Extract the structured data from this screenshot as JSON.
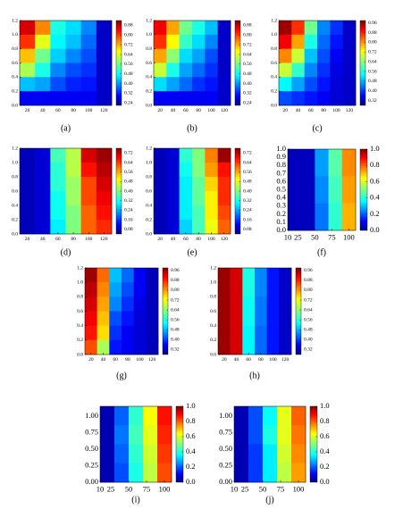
{
  "chart_data": [
    {
      "type": "heatmap",
      "caption": "(a)",
      "xlim": [
        10,
        130
      ],
      "xticks": [
        20,
        40,
        60,
        80,
        100,
        120
      ],
      "ylim": [
        0,
        1.2
      ],
      "yticks": [
        {
          "value": 0,
          "label": "0.0"
        },
        0.2,
        0.4,
        0.6,
        0.8,
        {
          "value": 1,
          "label": "1.0"
        },
        1.2
      ],
      "zlim": [
        0.22,
        0.92
      ],
      "zticks": [
        0.24,
        0.32,
        {
          "value": 0.4,
          "label": "0.40"
        },
        0.48,
        0.56,
        0.64,
        0.72,
        {
          "value": 0.8,
          "label": "0.80"
        },
        0.88
      ],
      "values": [
        [
          0.86,
          0.74,
          0.5,
          0.46,
          0.4,
          0.27
        ],
        [
          0.8,
          0.64,
          0.48,
          0.44,
          0.38,
          0.27
        ],
        [
          0.7,
          0.56,
          0.45,
          0.4,
          0.36,
          0.27
        ],
        [
          0.6,
          0.5,
          0.4,
          0.36,
          0.34,
          0.27
        ],
        [
          0.44,
          0.42,
          0.36,
          0.33,
          0.32,
          0.27
        ],
        [
          0.3,
          0.3,
          0.3,
          0.3,
          0.3,
          0.27
        ]
      ]
    },
    {
      "type": "heatmap",
      "caption": "(b)",
      "xlim": [
        10,
        130
      ],
      "xticks": [
        20,
        40,
        60,
        80,
        100,
        120
      ],
      "ylim": [
        0,
        1.2
      ],
      "yticks": [
        {
          "value": 0,
          "label": "0.0"
        },
        0.2,
        0.4,
        0.6,
        0.8,
        {
          "value": 1,
          "label": "1.0"
        },
        1.2
      ],
      "zlim": [
        0.22,
        0.92
      ],
      "zticks": [
        0.24,
        0.32,
        {
          "value": 0.4,
          "label": "0.40"
        },
        0.48,
        0.56,
        0.64,
        0.72,
        {
          "value": 0.8,
          "label": "0.80"
        },
        0.88
      ],
      "values": [
        [
          0.84,
          0.72,
          0.56,
          0.5,
          0.44,
          0.27
        ],
        [
          0.8,
          0.66,
          0.52,
          0.46,
          0.4,
          0.27
        ],
        [
          0.72,
          0.58,
          0.46,
          0.42,
          0.36,
          0.27
        ],
        [
          0.62,
          0.5,
          0.42,
          0.38,
          0.34,
          0.27
        ],
        [
          0.46,
          0.42,
          0.38,
          0.34,
          0.32,
          0.27
        ],
        [
          0.3,
          0.3,
          0.3,
          0.3,
          0.3,
          0.27
        ]
      ]
    },
    {
      "type": "heatmap",
      "caption": "(c)",
      "xlim": [
        10,
        130
      ],
      "xticks": [
        20,
        40,
        60,
        80,
        100,
        120
      ],
      "ylim": [
        0,
        1.2
      ],
      "yticks": [
        {
          "value": 0,
          "label": "0.0"
        },
        0.2,
        0.4,
        0.6,
        0.8,
        {
          "value": 1,
          "label": "1.0"
        },
        1.2
      ],
      "zlim": [
        0.28,
        0.98
      ],
      "zticks": [
        0.32,
        {
          "value": 0.4,
          "label": "0.40"
        },
        0.48,
        0.56,
        0.64,
        0.72,
        {
          "value": 0.8,
          "label": "0.80"
        },
        0.88,
        0.96
      ],
      "values": [
        [
          0.96,
          0.86,
          0.62,
          0.46,
          0.4,
          0.33
        ],
        [
          0.9,
          0.78,
          0.56,
          0.44,
          0.38,
          0.33
        ],
        [
          0.8,
          0.68,
          0.5,
          0.42,
          0.36,
          0.33
        ],
        [
          0.68,
          0.58,
          0.46,
          0.4,
          0.35,
          0.33
        ],
        [
          0.54,
          0.48,
          0.42,
          0.38,
          0.34,
          0.33
        ],
        [
          0.42,
          0.4,
          0.38,
          0.36,
          0.34,
          0.33
        ]
      ]
    },
    {
      "type": "heatmap",
      "caption": "(d)",
      "xlim": [
        10,
        130
      ],
      "xticks": [
        20,
        40,
        60,
        80,
        100,
        120
      ],
      "ylim": [
        0,
        1.2
      ],
      "yticks": [
        {
          "value": 0,
          "label": "0.0"
        },
        0.2,
        0.4,
        0.6,
        0.8,
        {
          "value": 1,
          "label": "1.0"
        },
        1.2
      ],
      "zlim": [
        0.04,
        0.76
      ],
      "zticks": [
        0.08,
        0.16,
        0.24,
        0.32,
        {
          "value": 0.4,
          "label": "0.40"
        },
        0.48,
        0.56,
        0.64,
        0.72
      ],
      "values": [
        [
          0.08,
          0.1,
          0.36,
          0.44,
          0.7,
          0.74
        ],
        [
          0.08,
          0.1,
          0.34,
          0.44,
          0.66,
          0.72
        ],
        [
          0.08,
          0.1,
          0.34,
          0.42,
          0.62,
          0.7
        ],
        [
          0.08,
          0.1,
          0.32,
          0.42,
          0.62,
          0.68
        ],
        [
          0.08,
          0.1,
          0.32,
          0.4,
          0.6,
          0.66
        ],
        [
          0.08,
          0.1,
          0.3,
          0.4,
          0.6,
          0.64
        ]
      ]
    },
    {
      "type": "heatmap",
      "caption": "(e)",
      "xlim": [
        10,
        130
      ],
      "xticks": [
        20,
        40,
        60,
        80,
        100,
        120
      ],
      "ylim": [
        0,
        1.2
      ],
      "yticks": [
        {
          "value": 0,
          "label": "0.0"
        },
        0.2,
        0.4,
        0.6,
        0.8,
        {
          "value": 1,
          "label": "1.0"
        },
        1.2
      ],
      "zlim": [
        0.04,
        0.76
      ],
      "zticks": [
        0.08,
        0.16,
        0.24,
        0.32,
        {
          "value": 0.4,
          "label": "0.40"
        },
        0.48,
        0.56,
        0.64,
        0.72
      ],
      "values": [
        [
          0.08,
          0.1,
          0.34,
          0.4,
          0.58,
          0.74
        ],
        [
          0.08,
          0.1,
          0.32,
          0.4,
          0.56,
          0.66
        ],
        [
          0.08,
          0.1,
          0.3,
          0.38,
          0.52,
          0.64
        ],
        [
          0.08,
          0.1,
          0.3,
          0.38,
          0.5,
          0.64
        ],
        [
          0.08,
          0.1,
          0.3,
          0.36,
          0.5,
          0.62
        ],
        [
          0.08,
          0.1,
          0.28,
          0.36,
          0.48,
          0.6
        ]
      ]
    },
    {
      "type": "heatmap",
      "caption": "(f)",
      "xlim": [
        10,
        110
      ],
      "xticks": [
        10,
        25,
        50,
        75,
        100
      ],
      "ylim": [
        0,
        1
      ],
      "yticks": [
        {
          "value": 0,
          "label": "0.0"
        },
        0.1,
        0.2,
        0.3,
        0.4,
        0.5,
        0.6,
        0.7,
        0.8,
        0.9,
        {
          "value": 1,
          "label": "1.0"
        }
      ],
      "zlim": [
        0,
        1
      ],
      "zticks": [
        {
          "value": 0,
          "label": "0.0"
        },
        0.2,
        0.4,
        0.6,
        0.8,
        {
          "value": 1,
          "label": "1.0"
        }
      ],
      "values": [
        [
          0.06,
          0.06,
          0.28,
          0.46,
          0.74
        ],
        [
          0.06,
          0.06,
          0.28,
          0.46,
          0.74
        ],
        [
          0.06,
          0.06,
          0.26,
          0.44,
          0.72
        ],
        [
          0.06,
          0.06,
          0.26,
          0.44,
          0.72
        ],
        [
          0.06,
          0.06,
          0.24,
          0.42,
          0.7
        ],
        [
          0.06,
          0.06,
          0.24,
          0.42,
          0.7
        ]
      ]
    },
    {
      "type": "heatmap",
      "caption": "(g)",
      "xlim": [
        10,
        130
      ],
      "xticks": [
        20,
        40,
        60,
        80,
        100,
        120
      ],
      "ylim": [
        0,
        1.2
      ],
      "yticks": [
        {
          "value": 0,
          "label": "0.0"
        },
        0.2,
        0.4,
        0.6,
        0.8,
        {
          "value": 1,
          "label": "1.0"
        },
        1.2
      ],
      "zlim": [
        0.28,
        0.98
      ],
      "zticks": [
        0.32,
        {
          "value": 0.4,
          "label": "0.40"
        },
        0.48,
        0.56,
        0.64,
        0.72,
        {
          "value": 0.8,
          "label": "0.80"
        },
        0.88,
        0.96
      ],
      "values": [
        [
          0.96,
          0.82,
          0.5,
          0.44,
          0.36,
          0.32
        ],
        [
          0.94,
          0.8,
          0.48,
          0.42,
          0.36,
          0.32
        ],
        [
          0.92,
          0.78,
          0.46,
          0.4,
          0.35,
          0.32
        ],
        [
          0.9,
          0.76,
          0.42,
          0.38,
          0.34,
          0.32
        ],
        [
          0.88,
          0.74,
          0.4,
          0.36,
          0.34,
          0.32
        ],
        [
          0.84,
          0.66,
          0.38,
          0.36,
          0.34,
          0.32
        ]
      ]
    },
    {
      "type": "heatmap",
      "caption": "(h)",
      "xlim": [
        10,
        130
      ],
      "xticks": [
        20,
        40,
        60,
        80,
        100,
        120
      ],
      "ylim": [
        0,
        1.2
      ],
      "yticks": [
        {
          "value": 0,
          "label": "0.0"
        },
        0.2,
        0.4,
        0.6,
        0.8,
        {
          "value": 1,
          "label": "1.0"
        },
        1.2
      ],
      "zlim": [
        0.28,
        0.98
      ],
      "zticks": [
        0.32,
        {
          "value": 0.4,
          "label": "0.40"
        },
        0.48,
        0.56,
        0.64,
        0.72,
        {
          "value": 0.8,
          "label": "0.80"
        },
        0.88,
        0.96
      ],
      "values": [
        [
          0.96,
          0.92,
          0.56,
          0.46,
          0.38,
          0.33
        ],
        [
          0.96,
          0.92,
          0.56,
          0.46,
          0.38,
          0.33
        ],
        [
          0.96,
          0.92,
          0.55,
          0.45,
          0.38,
          0.33
        ],
        [
          0.96,
          0.92,
          0.55,
          0.45,
          0.38,
          0.33
        ],
        [
          0.96,
          0.92,
          0.54,
          0.44,
          0.38,
          0.33
        ],
        [
          0.96,
          0.92,
          0.54,
          0.44,
          0.38,
          0.33
        ]
      ]
    },
    {
      "type": "heatmap",
      "caption": "(i)",
      "xlim": [
        10,
        110
      ],
      "xticks": [
        10,
        25,
        50,
        75,
        100
      ],
      "ylim": [
        0,
        1.15
      ],
      "yticks": [
        {
          "value": 0,
          "label": "0.00"
        },
        0.25,
        {
          "value": 0.5,
          "label": "0.50"
        },
        0.75,
        {
          "value": 1,
          "label": "1.00"
        }
      ],
      "zlim": [
        0,
        1
      ],
      "zticks": [
        {
          "value": 0,
          "label": "0.0"
        },
        0.2,
        0.4,
        0.6,
        0.8,
        {
          "value": 1,
          "label": "1.0"
        }
      ],
      "values": [
        [
          0.05,
          0.22,
          0.42,
          0.62,
          0.86
        ],
        [
          0.05,
          0.24,
          0.44,
          0.6,
          0.84
        ],
        [
          0.05,
          0.22,
          0.42,
          0.58,
          0.82
        ],
        [
          0.05,
          0.2,
          0.4,
          0.56,
          0.8
        ]
      ]
    },
    {
      "type": "heatmap",
      "caption": "(j)",
      "xlim": [
        10,
        110
      ],
      "xticks": [
        10,
        25,
        50,
        75,
        100
      ],
      "ylim": [
        0,
        1.15
      ],
      "yticks": [
        {
          "value": 0,
          "label": "0.00"
        },
        0.25,
        {
          "value": 0.5,
          "label": "0.50"
        },
        0.75,
        {
          "value": 1,
          "label": "1.00"
        }
      ],
      "zlim": [
        0,
        1
      ],
      "zticks": [
        {
          "value": 0,
          "label": "0.0"
        },
        0.2,
        0.4,
        0.6,
        0.8,
        {
          "value": 1,
          "label": "1.0"
        }
      ],
      "values": [
        [
          0.05,
          0.2,
          0.38,
          0.6,
          0.78
        ],
        [
          0.05,
          0.2,
          0.4,
          0.6,
          0.76
        ],
        [
          0.05,
          0.18,
          0.36,
          0.58,
          0.74
        ],
        [
          0.05,
          0.18,
          0.36,
          0.56,
          0.72
        ]
      ]
    }
  ]
}
